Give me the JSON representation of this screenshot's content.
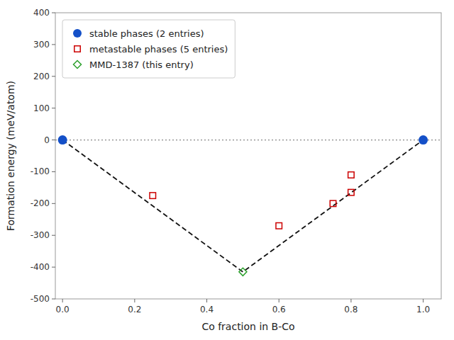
{
  "chart_data": {
    "type": "scatter",
    "xlabel": "Co fraction in B-Co",
    "ylabel": "Formation energy (meV/atom)",
    "xlim": [
      -0.02,
      1.05
    ],
    "ylim": [
      -500,
      400
    ],
    "xticks": [
      {
        "value": 0.0,
        "label": "0.0"
      },
      {
        "value": 0.2,
        "label": "0.2"
      },
      {
        "value": 0.4,
        "label": "0.4"
      },
      {
        "value": 0.6,
        "label": "0.6"
      },
      {
        "value": 0.8,
        "label": "0.8"
      },
      {
        "value": 1.0,
        "label": "1.0"
      }
    ],
    "yticks": [
      -500,
      -400,
      -300,
      -200,
      -100,
      0,
      100,
      200,
      300,
      400
    ],
    "grid": false,
    "legend": "upper left",
    "series": [
      {
        "type": "hline",
        "values": [
          0
        ],
        "color": "#888888",
        "line_style": "dotted"
      },
      {
        "type": "line",
        "x": [
          0.0,
          0.5,
          1.0
        ],
        "values": [
          0,
          -415,
          0
        ],
        "color": "#111111",
        "line_style": "dashed"
      },
      {
        "type": "scatter",
        "name": "stable phases (2 entries)",
        "x": [
          0.0,
          1.0
        ],
        "values": [
          0,
          0
        ],
        "color": "#1450c8",
        "marker": "circle"
      },
      {
        "type": "scatter",
        "name": "metastable phases (5 entries)",
        "x": [
          0.25,
          0.6,
          0.75,
          0.8,
          0.8
        ],
        "values": [
          -175,
          -270,
          -200,
          -165,
          -110
        ],
        "color": "#cc0000",
        "marker": "square"
      },
      {
        "type": "scatter",
        "name": "MMD-1387 (this entry)",
        "x": [
          0.5
        ],
        "values": [
          -415
        ],
        "color": "#2ca02c",
        "marker": "diamond"
      }
    ]
  }
}
